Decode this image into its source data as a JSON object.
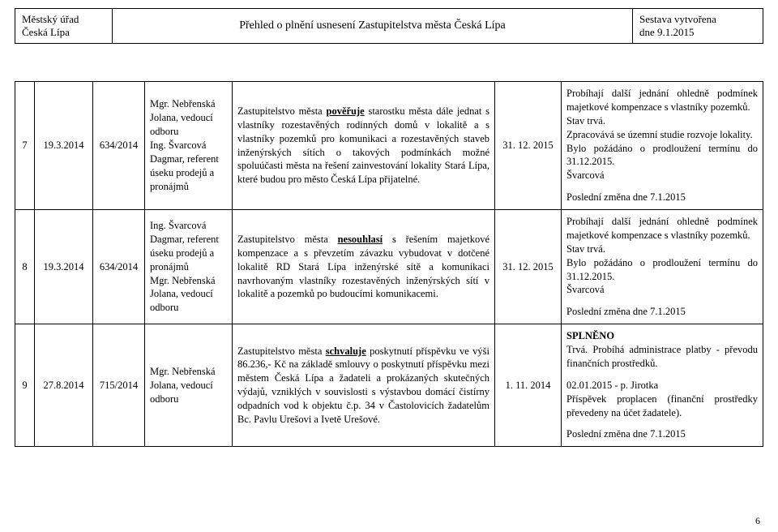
{
  "header": {
    "left_line1": "Městský úřad",
    "left_line2": "Česká Lípa",
    "title": "Přehled o plnění usnesení Zastupitelstva města Česká Lípa",
    "right_line1": "Sestava vytvořena",
    "right_line2": "dne 9.1.2015"
  },
  "rows": [
    {
      "num": "7",
      "date": "19.3.2014",
      "ref": "634/2014",
      "responsible": "Mgr. Nebřenská Jolana, vedoucí odboru\nIng. Švarcová Dagmar, referent úseku prodejů a pronájmů",
      "text_pre": "Zastupitelstvo města ",
      "text_act": "pověřuje",
      "text_post": " starostku města dále jednat s vlastníky rozestavěných rodinných domů v lokalitě a s vlastníky pozemků pro komunikaci a rozestavěných staveb inženýrských sítích o takových podmínkách možné spoluúčasti města na řešení zainvestování lokality Stará Lípa, které budou pro město Česká Lípa přijatelné.",
      "deadline": "31. 12. 2015",
      "status_lines": [
        "Probíhají další jednání ohledně podmínek majetkové kompenzace s vlastníky pozemků.",
        "Stav trvá.",
        "Zpracovává se územní studie rozvoje lokality.",
        "Bylo požádáno o prodloužení termínu do 31.12.2015.",
        "Švarcová",
        "",
        "Poslední změna dne 7.1.2015"
      ]
    },
    {
      "num": "8",
      "date": "19.3.2014",
      "ref": "634/2014",
      "responsible": "Ing. Švarcová Dagmar, referent úseku prodejů a pronájmů\nMgr. Nebřenská Jolana, vedoucí odboru",
      "text_pre": "Zastupitelstvo města ",
      "text_act": "nesouhlasí",
      "text_post": " s řešením majetkové kompenzace a s převzetím závazku vybudovat v dotčené lokalitě RD Stará Lípa inženýrské sítě a komunikaci navrhovaným vlastníky rozestavěných inženýrských sítí v lokalitě a pozemků po budoucími komunikacemi.",
      "deadline": "31. 12. 2015",
      "status_lines": [
        "Probíhají další jednání ohledně podmínek majetkové kompenzace s vlastníky pozemků.",
        "Stav trvá.",
        "Bylo požádáno o prodloužení termínu do 31.12.2015.",
        "Švarcová",
        "",
        "Poslední změna dne 7.1.2015"
      ]
    },
    {
      "num": "9",
      "date": "27.8.2014",
      "ref": "715/2014",
      "responsible": "Mgr. Nebřenská Jolana, vedoucí odboru",
      "text_pre": "Zastupitelstvo města ",
      "text_act": "schvaluje",
      "text_post": " poskytnutí příspěvku ve výši 86.236,- Kč na základě smlouvy o poskytnutí příspěvku mezi městem Česká Lípa a žadateli a prokázaných skutečných výdajů, vzniklých v souvislosti s výstavbou domácí čistírny odpadních vod k objektu č.p. 34 v Častolovicích žadatelům Bc. Pavlu Urešovi a Ivetě Urešové.",
      "deadline": "1. 11. 2014",
      "status_head": "SPLNĚNO",
      "status_lines": [
        "Trvá. Probíhá administrace platby - převodu finančních prostředků.",
        "",
        "02.01.2015 - p. Jirotka",
        "Příspěvek proplacen (finanční prostředky převedeny na účet žadatele).",
        "",
        "Poslední změna dne 7.1.2015"
      ]
    }
  ],
  "page_number": "6"
}
